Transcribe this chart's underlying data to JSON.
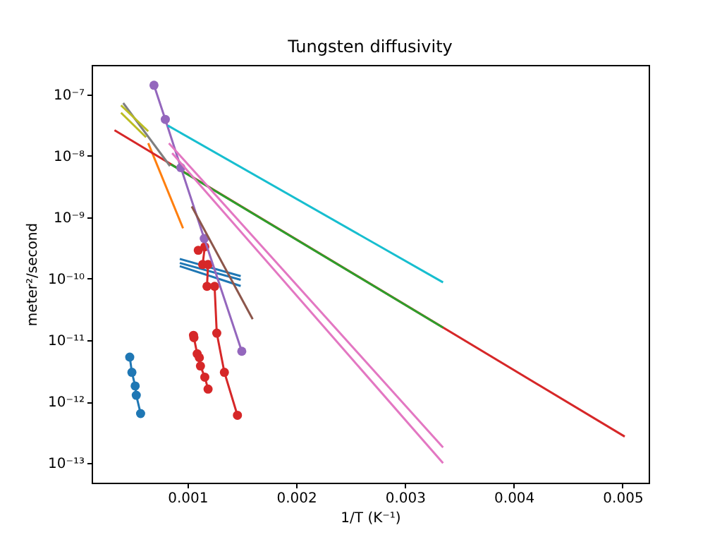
{
  "chart_data": {
    "type": "line",
    "title": "Tungsten diffusivity",
    "xlabel": "1/T (K⁻¹)",
    "ylabel": "meter²/second",
    "log": "y",
    "grid": false,
    "xlim": [
      0.00012,
      0.00524
    ],
    "xticks": [
      0.001,
      0.002,
      0.003,
      0.004,
      0.005
    ],
    "ylim": [
      4.8e-14,
      3e-07
    ],
    "yticks": [
      {
        "value": 1e-13,
        "label": "10⁻¹³"
      },
      {
        "value": 1e-12,
        "label": "10⁻¹²"
      },
      {
        "value": 1e-11,
        "label": "10⁻¹¹"
      },
      {
        "value": 1e-10,
        "label": "10⁻¹⁰"
      },
      {
        "value": 1e-09,
        "label": "10⁻⁹"
      },
      {
        "value": 1e-08,
        "label": "10⁻⁸"
      },
      {
        "value": 1e-07,
        "label": "10⁻⁷"
      }
    ],
    "series": [
      {
        "color": "#1f77b4",
        "marker": "circle",
        "x": [
          0.00047,
          0.00049,
          0.00052,
          0.00053,
          0.00057
        ],
        "values": [
          5.3e-12,
          3e-12,
          1.8e-12,
          1.27e-12,
          6.4e-13
        ]
      },
      {
        "color": "#1f77b4",
        "marker": "none",
        "x": [
          0.00093,
          0.00149
        ],
        "values": [
          2.1e-10,
          1.1e-10
        ]
      },
      {
        "color": "#1f77b4",
        "marker": "none",
        "x": [
          0.00093,
          0.00149
        ],
        "values": [
          1.8e-10,
          9.6e-11
        ]
      },
      {
        "color": "#1f77b4",
        "marker": "none",
        "x": [
          0.00093,
          0.00149
        ],
        "values": [
          1.6e-10,
          7.6e-11
        ]
      },
      {
        "color": "#ff7f0e",
        "marker": "none",
        "x": [
          0.00064,
          0.00096
        ],
        "values": [
          1.6e-08,
          6.6e-10
        ]
      },
      {
        "color": "#d62728",
        "marker": "none",
        "x": [
          0.00033,
          0.00502
        ],
        "values": [
          2.6e-08,
          2.7e-13
        ]
      },
      {
        "color": "#2ca02c",
        "marker": "none",
        "x": [
          0.00085,
          0.00335
        ],
        "values": [
          7.2e-09,
          1.6e-11
        ]
      },
      {
        "color": "#d62728",
        "marker": "circle",
        "x": [
          0.001056,
          0.00106,
          0.00109,
          0.00111,
          0.00112,
          0.00116,
          0.00119
        ],
        "values": [
          1.2e-11,
          1.1e-11,
          6e-12,
          5.2e-12,
          3.8e-12,
          2.5e-12,
          1.6e-12
        ]
      },
      {
        "color": "#d62728",
        "marker": "circle",
        "x": [
          0.0011,
          0.00116,
          0.00114,
          0.00119,
          0.00118,
          0.00125,
          0.00127,
          0.00134,
          0.00146
        ],
        "values": [
          2.9e-10,
          3.3e-10,
          1.7e-10,
          1.7e-10,
          7.5e-11,
          7.5e-11,
          1.3e-11,
          3e-12,
          6e-13
        ]
      },
      {
        "color": "#9467bd",
        "marker": "circle",
        "x": [
          0.000693,
          0.000797,
          0.00094,
          0.001155,
          0.0015
        ],
        "values": [
          1.4e-07,
          3.9e-08,
          6.4e-09,
          4.5e-10,
          6.6e-12
        ]
      },
      {
        "color": "#8c564b",
        "marker": "none",
        "x": [
          0.00104,
          0.0016
        ],
        "values": [
          1.5e-09,
          2.2e-11
        ]
      },
      {
        "color": "#e377c2",
        "marker": "none",
        "x": [
          0.00083,
          0.00335
        ],
        "values": [
          1.6e-08,
          1.8e-13
        ]
      },
      {
        "color": "#e377c2",
        "marker": "none",
        "x": [
          0.00086,
          0.00335
        ],
        "values": [
          1.1e-08,
          1e-13
        ]
      },
      {
        "color": "#7f7f7f",
        "marker": "none",
        "x": [
          0.00041,
          0.00084
        ],
        "values": [
          7.2e-08,
          6.8e-09
        ]
      },
      {
        "color": "#bcbd22",
        "marker": "none",
        "x": [
          0.00039,
          0.00064
        ],
        "values": [
          6.6e-08,
          2.5e-08
        ]
      },
      {
        "color": "#bcbd22",
        "marker": "none",
        "x": [
          0.00039,
          0.00062
        ],
        "values": [
          5e-08,
          2e-08
        ]
      },
      {
        "color": "#17becf",
        "marker": "none",
        "x": [
          0.00082,
          0.00335
        ],
        "values": [
          3.1e-08,
          8.7e-11
        ]
      }
    ]
  }
}
